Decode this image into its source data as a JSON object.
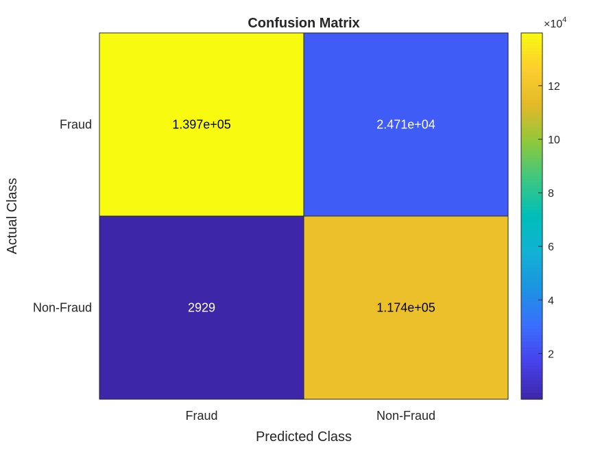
{
  "chart_data": {
    "type": "heatmap",
    "title": "Confusion Matrix",
    "xlabel": "Predicted Class",
    "ylabel": "Actual Class",
    "x_categories": [
      "Fraud",
      "Non-Fraud"
    ],
    "y_categories": [
      "Fraud",
      "Non-Fraud"
    ],
    "values": [
      [
        139700,
        24710
      ],
      [
        2929,
        117400
      ]
    ],
    "cell_labels": [
      [
        "1.397e+05",
        "2.471e+04"
      ],
      [
        "2929",
        "1.174e+05"
      ]
    ],
    "colorbar": {
      "multiplier": "×10",
      "exponent": "4",
      "range": [
        2929,
        139700
      ],
      "ticks": [
        2,
        4,
        6,
        8,
        10,
        12
      ],
      "colormap": "parula"
    }
  }
}
